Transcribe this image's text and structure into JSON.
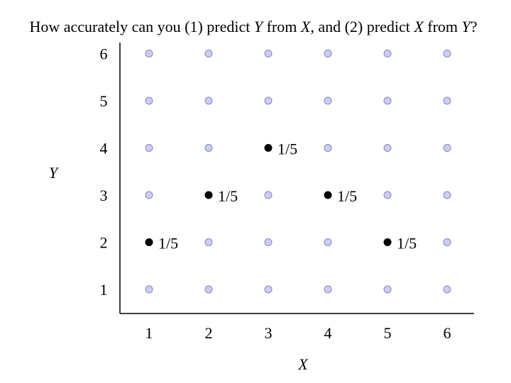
{
  "title": {
    "parts": [
      {
        "text": "How accurately can you (1) predict ",
        "italic": false
      },
      {
        "text": "Y",
        "italic": true
      },
      {
        "text": " from ",
        "italic": false
      },
      {
        "text": "X",
        "italic": true
      },
      {
        "text": ", and (2) predict ",
        "italic": false
      },
      {
        "text": "X",
        "italic": true
      },
      {
        "text": " from ",
        "italic": false
      },
      {
        "text": "Y",
        "italic": true
      },
      {
        "text": "?",
        "italic": false
      }
    ]
  },
  "axes": {
    "x_label": "X",
    "y_label": "Y"
  },
  "colors": {
    "grid_point_fill": "#ccccff",
    "grid_point_stroke": "#8888aa",
    "mass_point_fill": "#000000",
    "axis_line": "#000000"
  },
  "chart_data": {
    "type": "scatter",
    "x_ticks": [
      "1",
      "2",
      "3",
      "4",
      "5",
      "6"
    ],
    "y_ticks": [
      "1",
      "2",
      "3",
      "4",
      "5",
      "6"
    ],
    "grid_x_values": [
      1,
      2,
      3,
      4,
      5,
      6
    ],
    "grid_y_values": [
      1,
      2,
      3,
      4,
      5,
      6
    ],
    "points": [
      {
        "x": 1,
        "y": 2,
        "label": "1/5"
      },
      {
        "x": 2,
        "y": 3,
        "label": "1/5"
      },
      {
        "x": 3,
        "y": 4,
        "label": "1/5"
      },
      {
        "x": 4,
        "y": 3,
        "label": "1/5"
      },
      {
        "x": 5,
        "y": 2,
        "label": "1/5"
      }
    ],
    "xlabel": "X",
    "ylabel": "Y",
    "xlim": [
      1,
      6
    ],
    "ylim": [
      1,
      6
    ],
    "grid": false
  }
}
